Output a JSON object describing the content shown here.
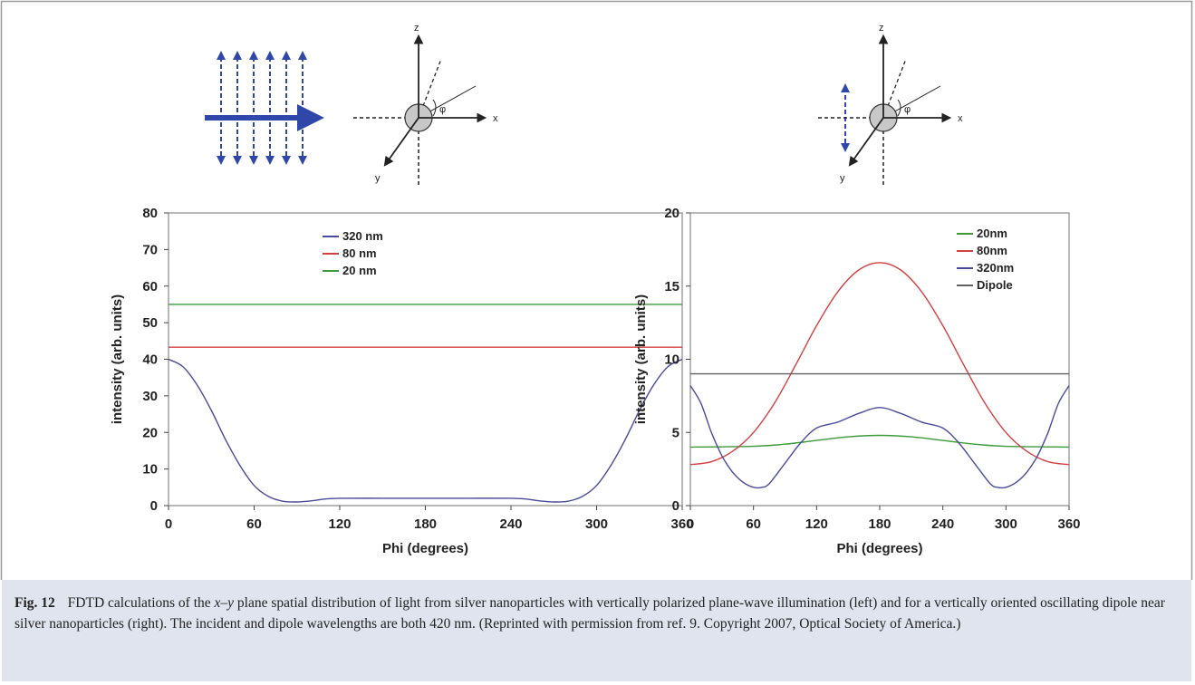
{
  "caption": {
    "label": "Fig. 12",
    "text_before": "FDTD calculations of the ",
    "variable": "x–y",
    "text_after": " plane spatial distribution of light from silver nanoparticles with vertically polarized plane-wave illumination (left) and for a vertically oriented oscillating dipole near silver nanoparticles (right). The incident and dipole wavelengths are both 420 nm. (Reprinted with permission from ref. 9. Copyright 2007, Optical Society of America.)"
  },
  "diagrams": {
    "left": {
      "axis_z": "z",
      "axis_x": "x",
      "axis_y": "y",
      "angle": "φ"
    },
    "right": {
      "axis_z": "z",
      "axis_x": "x",
      "axis_y": "y",
      "angle": "φ"
    }
  },
  "colors": {
    "blue": "#4a4a9a",
    "red": "#d44040",
    "green": "#3c9a3c",
    "gray": "#606060",
    "arrow_blue": "#2f47a8"
  },
  "chart_data": [
    {
      "type": "line",
      "xlabel": "Phi (degrees)",
      "ylabel": "intensity (arb. units)",
      "xlim": [
        0,
        360
      ],
      "ylim": [
        0,
        80
      ],
      "xticks": [
        0,
        60,
        120,
        180,
        240,
        300,
        360
      ],
      "yticks": [
        0,
        10,
        20,
        30,
        40,
        50,
        60,
        70,
        80
      ],
      "legend_position": "top-center",
      "series": [
        {
          "name": "320 nm",
          "color": "#4a4a9a",
          "x": [
            0,
            10,
            20,
            30,
            40,
            50,
            60,
            70,
            80,
            90,
            100,
            110,
            120,
            150,
            180,
            210,
            240,
            250,
            260,
            270,
            280,
            290,
            300,
            310,
            320,
            330,
            340,
            350,
            360
          ],
          "y": [
            40,
            38,
            33,
            26,
            18,
            11,
            5.5,
            2.5,
            1.2,
            1.0,
            1.3,
            1.8,
            2.0,
            2.0,
            2.0,
            2.0,
            2.0,
            1.8,
            1.3,
            1.0,
            1.2,
            2.5,
            5.5,
            11,
            18,
            26,
            33,
            38,
            40
          ]
        },
        {
          "name": "80 nm",
          "color": "#d44040",
          "x": [
            0,
            360
          ],
          "y": [
            43.3,
            43.3
          ]
        },
        {
          "name": "20 nm",
          "color": "#3c9a3c",
          "x": [
            0,
            360
          ],
          "y": [
            55,
            55
          ]
        }
      ]
    },
    {
      "type": "line",
      "xlabel": "Phi (degrees)",
      "ylabel": "intensity (arb. units)",
      "xlim": [
        0,
        360
      ],
      "ylim": [
        0,
        20
      ],
      "xticks": [
        0,
        60,
        120,
        180,
        240,
        300,
        360
      ],
      "yticks": [
        0,
        5,
        10,
        15,
        20
      ],
      "legend_position": "top-right",
      "series": [
        {
          "name": "20nm",
          "color": "#3c9a3c",
          "x": [
            0,
            60,
            90,
            120,
            150,
            180,
            210,
            240,
            270,
            300,
            360
          ],
          "y": [
            4.0,
            4.05,
            4.2,
            4.45,
            4.7,
            4.8,
            4.7,
            4.45,
            4.2,
            4.05,
            4.0
          ]
        },
        {
          "name": "80nm",
          "color": "#d44040",
          "x": [
            0,
            20,
            40,
            60,
            80,
            100,
            120,
            140,
            160,
            180,
            200,
            220,
            240,
            260,
            280,
            300,
            320,
            340,
            360
          ],
          "y": [
            2.8,
            3.0,
            3.7,
            5.0,
            7.0,
            9.6,
            12.3,
            14.6,
            16.1,
            16.6,
            16.1,
            14.6,
            12.3,
            9.6,
            7.0,
            5.0,
            3.7,
            3.0,
            2.8
          ]
        },
        {
          "name": "320nm",
          "color": "#4a4a9a",
          "x": [
            0,
            10,
            20,
            30,
            40,
            50,
            60,
            68,
            75,
            90,
            105,
            120,
            140,
            160,
            180,
            200,
            220,
            240,
            255,
            270,
            285,
            292,
            300,
            310,
            320,
            330,
            340,
            350,
            360
          ],
          "y": [
            8.2,
            7.0,
            5.0,
            3.4,
            2.3,
            1.6,
            1.25,
            1.25,
            1.5,
            2.9,
            4.3,
            5.3,
            5.7,
            6.3,
            6.7,
            6.3,
            5.7,
            5.3,
            4.3,
            2.9,
            1.5,
            1.25,
            1.25,
            1.6,
            2.3,
            3.4,
            5.0,
            7.0,
            8.2
          ]
        },
        {
          "name": "Dipole",
          "color": "#606060",
          "x": [
            0,
            360
          ],
          "y": [
            9,
            9
          ]
        }
      ]
    }
  ]
}
